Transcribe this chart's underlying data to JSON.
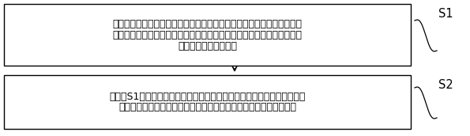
{
  "box1_text_line1": "根据定子绕组温度查询定子绕组电阻随温度变化的表格，获得对应的定子",
  "box1_text_line2": "绕组电阻，根据转子温度估算值查询转子永磁磁链随温度变化的表格，获",
  "box1_text_line3": "得对应的转子永磁磁链",
  "box2_text_line1": "将步骤S1获得的定子绕组电阻和转子永磁磁链作为内嵌式永磁同步电机状",
  "box2_text_line2": "态方程的参数，采用递归最小二乘法对直轴电感和交轴电感进行辨识",
  "label1": "S1",
  "label2": "S2",
  "box_border_color": "#000000",
  "box_fill_color": "#ffffff",
  "text_color": "#000000",
  "label_color": "#000000",
  "arrow_color": "#000000",
  "bg_color": "#ffffff",
  "fontsize": 9.0,
  "label_fontsize": 10.5
}
